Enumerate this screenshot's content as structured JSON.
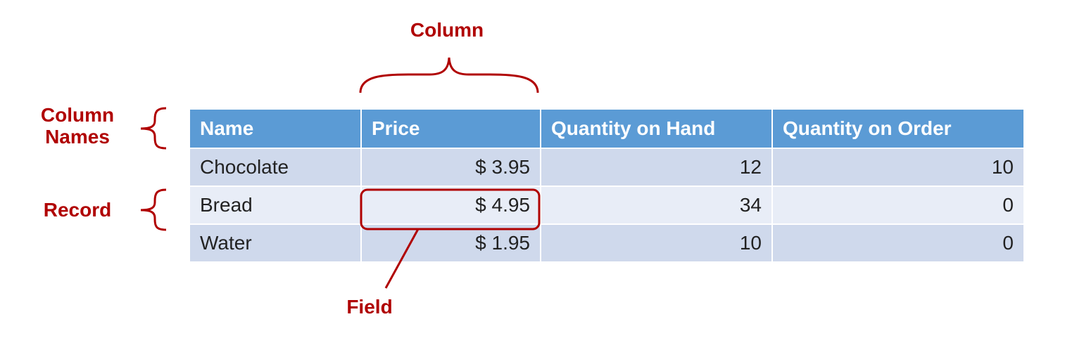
{
  "annotations": {
    "column": "Column",
    "column_names_line1": "Column",
    "column_names_line2": "Names",
    "record": "Record",
    "field": "Field"
  },
  "table": {
    "headers": [
      "Name",
      "Price",
      "Quantity on Hand",
      "Quantity on Order"
    ],
    "rows": [
      [
        "Chocolate",
        "$ 3.95",
        "12",
        "10"
      ],
      [
        "Bread",
        "$ 4.95",
        "34",
        "0"
      ],
      [
        "Water",
        "$ 1.95",
        "10",
        "0"
      ]
    ]
  },
  "colors": {
    "accent": "#b00000",
    "header_bg": "#5b9bd5",
    "row_dark": "#cfd9ec",
    "row_light": "#e8edf7"
  }
}
